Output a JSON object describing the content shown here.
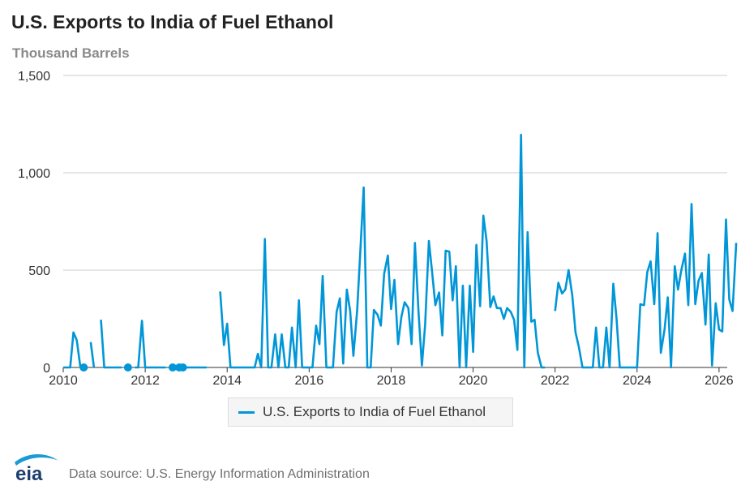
{
  "title": "U.S. Exports to India of Fuel Ethanol",
  "subtitle": "Thousand Barrels",
  "source": "Data source: U.S. Energy Information Administration",
  "logo_text": "eia",
  "colors": {
    "series": "#0096d7",
    "grid": "#cccccc",
    "axis": "#333333"
  },
  "chart_data": {
    "type": "line",
    "title": "U.S. Exports to India of Fuel Ethanol",
    "ylabel": "Thousand Barrels",
    "xlim": [
      2010,
      2026.2
    ],
    "ylim": [
      0,
      1500
    ],
    "yticks": [
      0,
      500,
      1000,
      1500
    ],
    "ytick_labels": [
      "0",
      "500",
      "1,000",
      "1,500"
    ],
    "xticks": [
      2010,
      2012,
      2014,
      2016,
      2018,
      2020,
      2022,
      2024,
      2026
    ],
    "xtick_labels": [
      "2010",
      "2012",
      "2014",
      "2016",
      "2018",
      "2020",
      "2022",
      "2024",
      "2026"
    ],
    "grid": "horizontal",
    "legend_position": "bottom",
    "series": [
      {
        "name": "U.S. Exports to India of Fuel Ethanol",
        "segments": [
          [
            [
              2010.0,
              0
            ],
            [
              2010.08,
              0
            ],
            [
              2010.17,
              0
            ],
            [
              2010.25,
              180
            ],
            [
              2010.33,
              140
            ],
            [
              2010.42,
              0
            ]
          ],
          [
            [
              2010.67,
              130
            ],
            [
              2010.75,
              0
            ]
          ],
          [
            [
              2010.92,
              245
            ],
            [
              2011.0,
              0
            ],
            [
              2011.08,
              0
            ],
            [
              2011.17,
              0
            ],
            [
              2011.25,
              0
            ],
            [
              2011.33,
              0
            ],
            [
              2011.42,
              0
            ]
          ],
          [
            [
              2011.75,
              0
            ],
            [
              2011.83,
              0
            ],
            [
              2011.92,
              240
            ],
            [
              2012.0,
              0
            ],
            [
              2012.08,
              0
            ],
            [
              2012.17,
              0
            ],
            [
              2012.25,
              0
            ],
            [
              2012.33,
              0
            ],
            [
              2012.42,
              0
            ],
            [
              2012.5,
              0
            ]
          ],
          [
            [
              2013.0,
              0
            ],
            [
              2013.08,
              0
            ],
            [
              2013.17,
              0
            ],
            [
              2013.25,
              0
            ],
            [
              2013.33,
              0
            ],
            [
              2013.42,
              0
            ],
            [
              2013.5,
              0
            ]
          ],
          [
            [
              2013.83,
              390
            ],
            [
              2013.92,
              115
            ],
            [
              2014.0,
              225
            ],
            [
              2014.08,
              0
            ],
            [
              2014.17,
              0
            ],
            [
              2014.25,
              0
            ],
            [
              2014.33,
              0
            ],
            [
              2014.42,
              0
            ],
            [
              2014.5,
              0
            ],
            [
              2014.58,
              0
            ],
            [
              2014.67,
              0
            ],
            [
              2014.75,
              70
            ],
            [
              2014.83,
              0
            ],
            [
              2014.92,
              660
            ],
            [
              2015.0,
              0
            ],
            [
              2015.08,
              0
            ],
            [
              2015.17,
              170
            ],
            [
              2015.25,
              0
            ],
            [
              2015.33,
              170
            ],
            [
              2015.42,
              0
            ],
            [
              2015.5,
              0
            ],
            [
              2015.58,
              205
            ],
            [
              2015.67,
              0
            ],
            [
              2015.75,
              345
            ],
            [
              2015.83,
              0
            ],
            [
              2015.92,
              0
            ],
            [
              2016.0,
              0
            ],
            [
              2016.08,
              0
            ],
            [
              2016.17,
              215
            ],
            [
              2016.25,
              120
            ],
            [
              2016.33,
              470
            ],
            [
              2016.42,
              0
            ],
            [
              2016.5,
              0
            ],
            [
              2016.58,
              0
            ],
            [
              2016.67,
              285
            ],
            [
              2016.75,
              355
            ],
            [
              2016.83,
              20
            ],
            [
              2016.92,
              400
            ],
            [
              2017.0,
              290
            ],
            [
              2017.08,
              60
            ],
            [
              2017.17,
              290
            ],
            [
              2017.25,
              600
            ],
            [
              2017.33,
              925
            ],
            [
              2017.42,
              0
            ],
            [
              2017.5,
              0
            ],
            [
              2017.58,
              295
            ],
            [
              2017.67,
              270
            ],
            [
              2017.75,
              215
            ],
            [
              2017.83,
              480
            ],
            [
              2017.92,
              575
            ],
            [
              2018.0,
              300
            ],
            [
              2018.08,
              450
            ],
            [
              2018.17,
              120
            ],
            [
              2018.25,
              260
            ],
            [
              2018.33,
              335
            ],
            [
              2018.42,
              305
            ],
            [
              2018.5,
              120
            ],
            [
              2018.58,
              640
            ],
            [
              2018.67,
              280
            ],
            [
              2018.75,
              10
            ],
            [
              2018.83,
              220
            ],
            [
              2018.92,
              650
            ],
            [
              2019.0,
              490
            ],
            [
              2019.08,
              320
            ],
            [
              2019.17,
              385
            ],
            [
              2019.25,
              165
            ],
            [
              2019.33,
              600
            ],
            [
              2019.42,
              595
            ],
            [
              2019.5,
              345
            ],
            [
              2019.58,
              520
            ],
            [
              2019.67,
              0
            ],
            [
              2019.75,
              420
            ],
            [
              2019.83,
              0
            ],
            [
              2019.92,
              420
            ],
            [
              2020.0,
              80
            ],
            [
              2020.08,
              630
            ],
            [
              2020.17,
              315
            ],
            [
              2020.25,
              780
            ],
            [
              2020.33,
              650
            ],
            [
              2020.42,
              310
            ],
            [
              2020.5,
              365
            ],
            [
              2020.58,
              305
            ],
            [
              2020.67,
              305
            ],
            [
              2020.75,
              250
            ],
            [
              2020.83,
              305
            ],
            [
              2020.92,
              285
            ],
            [
              2021.0,
              245
            ],
            [
              2021.08,
              90
            ],
            [
              2021.17,
              1195
            ],
            [
              2021.25,
              0
            ],
            [
              2021.33,
              695
            ],
            [
              2021.42,
              235
            ],
            [
              2021.5,
              245
            ],
            [
              2021.58,
              75
            ],
            [
              2021.67,
              0
            ],
            [
              2021.75,
              0
            ]
          ],
          [
            [
              2022.0,
              290
            ],
            [
              2022.08,
              435
            ],
            [
              2022.17,
              380
            ],
            [
              2022.25,
              400
            ],
            [
              2022.33,
              500
            ],
            [
              2022.42,
              370
            ],
            [
              2022.5,
              180
            ],
            [
              2022.58,
              105
            ],
            [
              2022.67,
              0
            ],
            [
              2022.75,
              0
            ],
            [
              2022.83,
              0
            ],
            [
              2022.92,
              0
            ],
            [
              2023.0,
              205
            ],
            [
              2023.08,
              0
            ],
            [
              2023.17,
              0
            ],
            [
              2023.25,
              205
            ],
            [
              2023.33,
              0
            ],
            [
              2023.42,
              430
            ],
            [
              2023.5,
              250
            ],
            [
              2023.58,
              0
            ],
            [
              2023.67,
              0
            ],
            [
              2023.75,
              0
            ],
            [
              2023.83,
              0
            ],
            [
              2023.92,
              0
            ],
            [
              2024.0,
              0
            ],
            [
              2024.08,
              325
            ],
            [
              2024.17,
              320
            ],
            [
              2024.25,
              490
            ],
            [
              2024.33,
              545
            ],
            [
              2024.42,
              325
            ],
            [
              2024.5,
              690
            ],
            [
              2024.58,
              75
            ],
            [
              2024.67,
              195
            ],
            [
              2024.75,
              360
            ],
            [
              2024.83,
              0
            ],
            [
              2024.92,
              520
            ],
            [
              2025.0,
              400
            ],
            [
              2025.08,
              500
            ],
            [
              2025.17,
              585
            ],
            [
              2025.25,
              320
            ],
            [
              2025.33,
              840
            ],
            [
              2025.42,
              325
            ],
            [
              2025.5,
              445
            ],
            [
              2025.58,
              485
            ],
            [
              2025.67,
              220
            ],
            [
              2025.75,
              580
            ],
            [
              2025.83,
              10
            ],
            [
              2025.92,
              330
            ],
            [
              2026.0,
              195
            ],
            [
              2026.08,
              185
            ],
            [
              2026.17,
              760
            ],
            [
              2026.25,
              350
            ],
            [
              2026.33,
              290
            ],
            [
              2026.42,
              640
            ]
          ]
        ],
        "isolated_points": [
          [
            2010.5,
            0
          ],
          [
            2011.58,
            0
          ],
          [
            2012.67,
            0
          ],
          [
            2012.83,
            0
          ],
          [
            2012.92,
            0
          ]
        ]
      }
    ]
  }
}
